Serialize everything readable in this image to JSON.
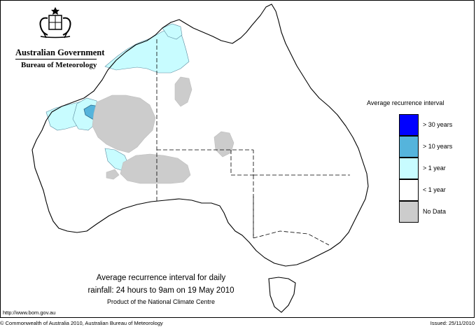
{
  "header": {
    "government": "Australian Government",
    "agency": "Bureau of Meteorology",
    "crest_icon": "coat-of-arms-icon"
  },
  "legend": {
    "title": "Average recurrence interval",
    "items": [
      {
        "label": "> 30 years",
        "color": "#0000ff"
      },
      {
        "label": "> 10 years",
        "color": "#55b4dc"
      },
      {
        "label": "> 1 year",
        "color": "#c8fcff"
      },
      {
        "label": "< 1 year",
        "color": "#ffffff"
      },
      {
        "label": "No Data",
        "color": "#cccccc"
      }
    ]
  },
  "caption": {
    "line1": "Average recurrence interval for daily",
    "line2": "rainfall: 24 hours to 9am on 19 May 2010",
    "line3": "Product of the National Climate Centre"
  },
  "footer": {
    "url": "http://www.bom.gov.au",
    "copyright": "© Commonwealth of Australia 2010, Australian Bureau of Meteorology",
    "issued": "Issued: 25/11/2010"
  }
}
